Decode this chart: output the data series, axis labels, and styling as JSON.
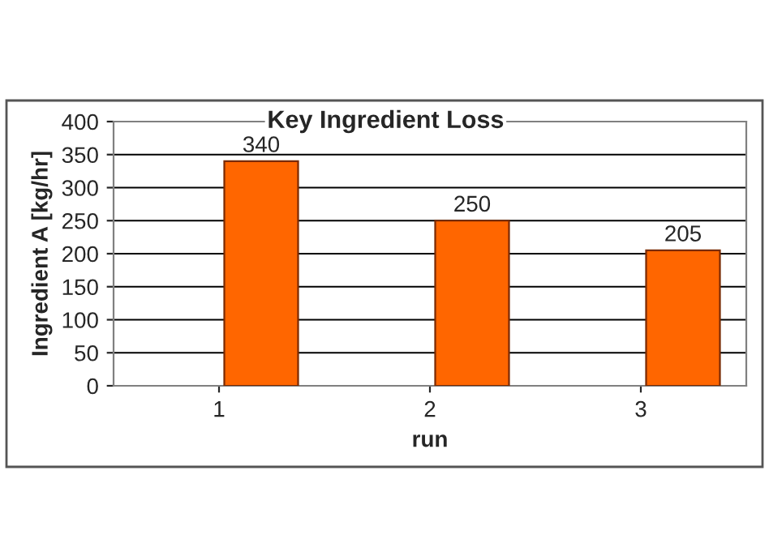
{
  "chart_data": {
    "type": "bar",
    "title": "Key Ingredient Loss",
    "xlabel": "run",
    "ylabel": "Ingredient A [kg/hr]",
    "categories": [
      "1",
      "2",
      "3"
    ],
    "series": [
      {
        "color": "#ff6600",
        "values": [
          340,
          250,
          205
        ]
      }
    ],
    "ylim": [
      0,
      400
    ],
    "yticks": [
      0,
      50,
      100,
      150,
      200,
      250,
      300,
      350,
      400
    ],
    "grid": "y",
    "data_labels": true,
    "legend": false
  }
}
